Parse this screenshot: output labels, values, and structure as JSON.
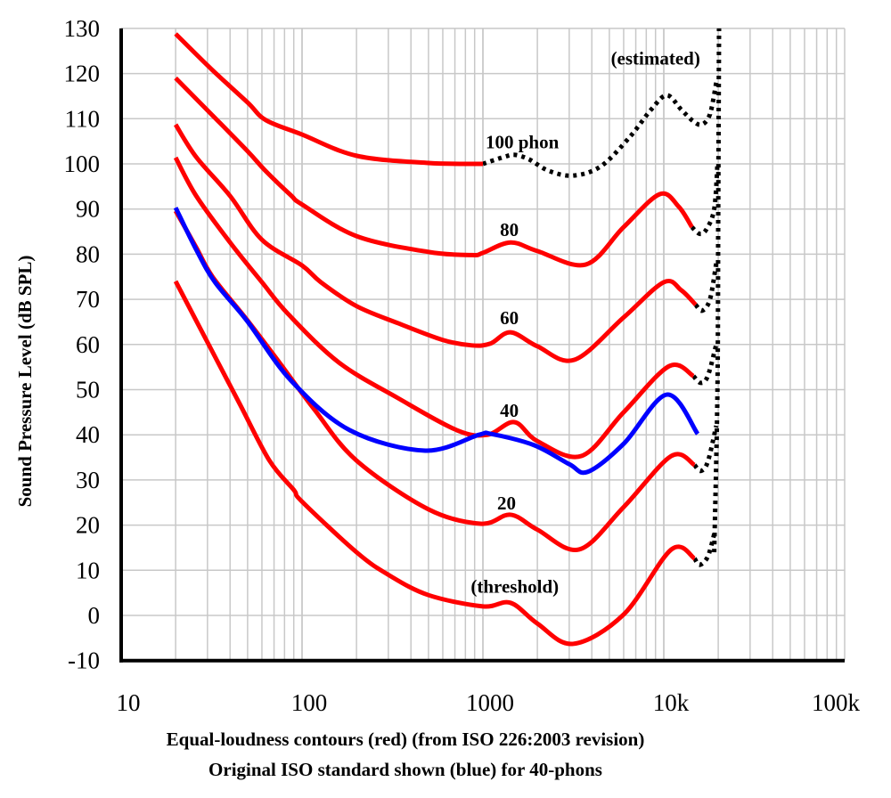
{
  "chart_data": {
    "type": "line",
    "xscale": "log",
    "xlim": [
      10,
      100000
    ],
    "ylim": [
      -10,
      130
    ],
    "grid": true,
    "ylabel": "Sound Pressure Level (dB SPL)",
    "x_tick_labels": [
      "10",
      "100",
      "1000",
      "10k",
      "100k"
    ],
    "x_tick_values": [
      10,
      100,
      1000,
      10000,
      100000
    ],
    "y_ticks": [
      130,
      120,
      110,
      100,
      90,
      80,
      70,
      60,
      50,
      40,
      30,
      20,
      10,
      0,
      -10
    ],
    "captions": [
      "Equal-loudness contours (red) (from ISO 226:2003 revision)",
      "Original ISO standard shown (blue) for 40-phons"
    ],
    "colors": {
      "iso2003": "#ff0000",
      "original": "#0000ff",
      "estimated": "#000000",
      "grid": "#c8c8c8"
    },
    "series": [
      {
        "label": "100 phon",
        "style": "iso2003",
        "points": [
          [
            20,
            128.8
          ],
          [
            31.5,
            121
          ],
          [
            50,
            113.6
          ],
          [
            63,
            109.7
          ],
          [
            100,
            106.5
          ],
          [
            200,
            101.8
          ],
          [
            500,
            100.2
          ],
          [
            1000,
            100
          ]
        ],
        "estimated": [
          [
            1000,
            100
          ],
          [
            1300,
            101.5
          ],
          [
            1500,
            102
          ],
          [
            1800,
            101
          ],
          [
            2300,
            98.5
          ],
          [
            3150,
            97.4
          ],
          [
            4500,
            99.5
          ],
          [
            6500,
            106
          ],
          [
            8500,
            112
          ],
          [
            10400,
            115.2
          ],
          [
            12500,
            112
          ],
          [
            14500,
            109.5
          ],
          [
            16200,
            108.7
          ],
          [
            18000,
            111
          ],
          [
            19500,
            118
          ]
        ]
      },
      {
        "label": "80",
        "style": "iso2003",
        "points": [
          [
            20,
            119
          ],
          [
            31.5,
            111
          ],
          [
            50,
            102.8
          ],
          [
            63,
            98.4
          ],
          [
            87,
            93
          ],
          [
            100,
            91
          ],
          [
            200,
            84
          ],
          [
            500,
            80.5
          ],
          [
            870,
            79.8
          ],
          [
            1000,
            80.3
          ],
          [
            1420,
            82.6
          ],
          [
            2000,
            80.7
          ],
          [
            3700,
            77.7
          ],
          [
            6000,
            86
          ],
          [
            9500,
            93.3
          ],
          [
            12100,
            90.5
          ],
          [
            14300,
            86
          ]
        ],
        "estimated": [
          [
            14300,
            86
          ],
          [
            15800,
            84.5
          ],
          [
            17200,
            85.5
          ],
          [
            19000,
            90
          ],
          [
            19800,
            100
          ]
        ]
      },
      {
        "label": "60",
        "style": "iso2003",
        "points": [
          [
            20,
            108.7
          ],
          [
            26,
            101.5
          ],
          [
            40,
            92.9
          ],
          [
            60,
            83.2
          ],
          [
            100,
            77.5
          ],
          [
            127,
            73.8
          ],
          [
            200,
            68.5
          ],
          [
            340,
            64.7
          ],
          [
            600,
            61
          ],
          [
            870,
            59.8
          ],
          [
            1100,
            60.2
          ],
          [
            1420,
            62.7
          ],
          [
            2000,
            59.6
          ],
          [
            3200,
            56.6
          ],
          [
            6000,
            66
          ],
          [
            10000,
            73.8
          ],
          [
            12500,
            72
          ],
          [
            15000,
            68.8
          ]
        ],
        "estimated": [
          [
            15000,
            68.8
          ],
          [
            16300,
            67.5
          ],
          [
            18000,
            70
          ],
          [
            19500,
            78
          ]
        ]
      },
      {
        "label": "40",
        "style": "iso2003",
        "points": [
          [
            20,
            101.4
          ],
          [
            26,
            92.9
          ],
          [
            40,
            82.6
          ],
          [
            60,
            73.8
          ],
          [
            84,
            66.7
          ],
          [
            160,
            56
          ],
          [
            340,
            48.1
          ],
          [
            720,
            41
          ],
          [
            1060,
            40
          ],
          [
            1490,
            42.8
          ],
          [
            2000,
            38.6
          ],
          [
            3500,
            35.3
          ],
          [
            6000,
            45
          ],
          [
            10700,
            55.2
          ],
          [
            14600,
            53
          ]
        ],
        "estimated": [
          [
            14600,
            53
          ],
          [
            16000,
            51.5
          ],
          [
            17500,
            53
          ],
          [
            19500,
            60
          ]
        ]
      },
      {
        "label": "20",
        "style": "iso2003",
        "points": [
          [
            20,
            89.6
          ],
          [
            26,
            81.5
          ],
          [
            32,
            75
          ],
          [
            50,
            65.3
          ],
          [
            75,
            56
          ],
          [
            117,
            45.6
          ],
          [
            200,
            34.3
          ],
          [
            500,
            23.5
          ],
          [
            980,
            20.3
          ],
          [
            1420,
            22.3
          ],
          [
            2000,
            19
          ],
          [
            3400,
            14.6
          ],
          [
            6000,
            24
          ],
          [
            11000,
            35.3
          ],
          [
            14800,
            33.3
          ]
        ],
        "estimated": [
          [
            14800,
            33.3
          ],
          [
            16000,
            32
          ],
          [
            17500,
            34
          ],
          [
            19500,
            42
          ]
        ]
      },
      {
        "label": "(threshold)",
        "style": "iso2003",
        "points": [
          [
            20,
            74
          ],
          [
            30,
            60.5
          ],
          [
            45,
            47
          ],
          [
            66,
            34.3
          ],
          [
            90,
            27.8
          ],
          [
            100,
            25.2
          ],
          [
            200,
            14
          ],
          [
            300,
            9
          ],
          [
            500,
            4.5
          ],
          [
            1000,
            2
          ],
          [
            1420,
            2.8
          ],
          [
            2000,
            -1.8
          ],
          [
            3150,
            -6.3
          ],
          [
            6000,
            0.2
          ],
          [
            11000,
            14.6
          ],
          [
            14800,
            12.6
          ]
        ],
        "estimated": [
          [
            14800,
            12.6
          ],
          [
            15800,
            11.2
          ],
          [
            17500,
            13
          ],
          [
            19000,
            18
          ]
        ]
      },
      {
        "label": "40 (original ISO)",
        "style": "original",
        "points": [
          [
            20,
            90.3
          ],
          [
            26,
            81
          ],
          [
            33,
            73.8
          ],
          [
            49.5,
            65.3
          ],
          [
            87,
            52
          ],
          [
            184,
            41
          ],
          [
            480,
            36.5
          ],
          [
            950,
            40
          ],
          [
            1110,
            40.2
          ],
          [
            1920,
            37.7
          ],
          [
            3000,
            33.5
          ],
          [
            3800,
            31.8
          ],
          [
            6000,
            38
          ],
          [
            10400,
            48.9
          ],
          [
            15400,
            40.2
          ]
        ]
      }
    ],
    "estimated_edge": [
      [
        19000,
        14
      ],
      [
        19800,
        50
      ],
      [
        20000,
        90
      ],
      [
        20200,
        130
      ]
    ],
    "annotations": [
      {
        "text": "(estimated)",
        "at": [
          9000,
          122
        ]
      },
      {
        "text": "100 phon",
        "at": [
          1650,
          103.5
        ]
      },
      {
        "text": "80",
        "at": [
          1400,
          84
        ]
      },
      {
        "text": "60",
        "at": [
          1400,
          64.5
        ]
      },
      {
        "text": "40",
        "at": [
          1400,
          44
        ]
      },
      {
        "text": "20",
        "at": [
          1350,
          23.5
        ]
      },
      {
        "text": "(threshold)",
        "at": [
          1500,
          5
        ]
      }
    ]
  }
}
